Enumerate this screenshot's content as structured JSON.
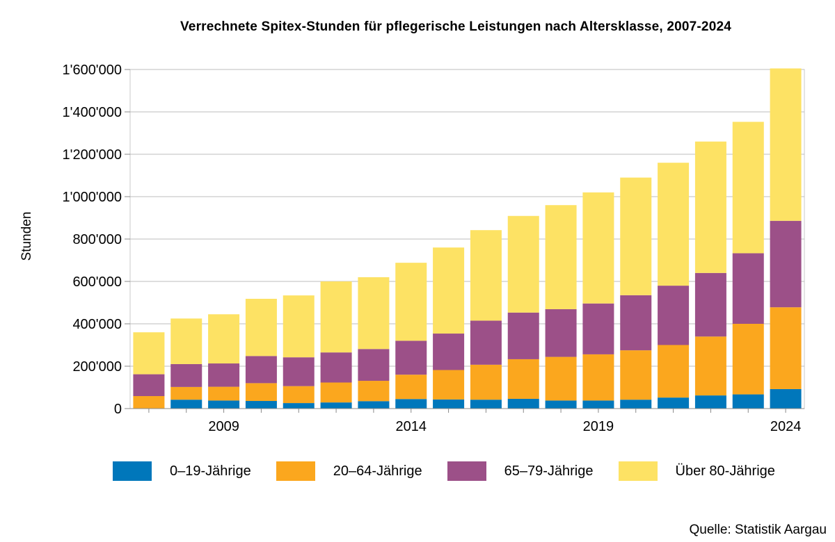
{
  "chart_data": {
    "type": "bar",
    "stacked": true,
    "title": "Verrechnete Spitex-Stunden für pflegerische Leistungen nach Altersklasse, 2007-2024",
    "ylabel": "Stunden",
    "xlabel": "",
    "ylim": [
      0,
      1600000
    ],
    "y_ticks": [
      0,
      200000,
      400000,
      600000,
      800000,
      1000000,
      1200000,
      1400000,
      1600000
    ],
    "y_tick_labels": [
      "0",
      "200'000",
      "400'000",
      "600'000",
      "800'000",
      "1'000'000",
      "1'200'000",
      "1'400'000",
      "1'600'000"
    ],
    "x_tick_labels": [
      "2009",
      "2014",
      "2019",
      "2024"
    ],
    "categories": [
      "2007",
      "2008",
      "2009",
      "2010",
      "2011",
      "2012",
      "2013",
      "2014",
      "2015",
      "2016",
      "2017",
      "2018",
      "2019",
      "2020",
      "2021",
      "2022",
      "2023",
      "2024"
    ],
    "series": [
      {
        "name": "0–19-Jährige",
        "color": "#0077bb",
        "values": [
          0,
          42000,
          38000,
          36000,
          26000,
          29000,
          35000,
          45000,
          43000,
          42000,
          46000,
          38000,
          38000,
          42000,
          52000,
          62000,
          67000,
          92000
        ]
      },
      {
        "name": "20–64-Jährige",
        "color": "#fba71e",
        "values": [
          59000,
          60000,
          65000,
          84000,
          80000,
          94000,
          96000,
          115000,
          139000,
          165000,
          187000,
          206000,
          218000,
          233000,
          248000,
          278000,
          333000,
          386000
        ]
      },
      {
        "name": "65–79-Jährige",
        "color": "#9c5088",
        "values": [
          103000,
          108000,
          110000,
          128000,
          136000,
          142000,
          150000,
          160000,
          172000,
          208000,
          220000,
          225000,
          240000,
          260000,
          280000,
          300000,
          333000,
          408000
        ]
      },
      {
        "name": "Über 80-Jährige",
        "color": "#fde264",
        "values": [
          198000,
          215000,
          232000,
          270000,
          292000,
          335000,
          339000,
          368000,
          406000,
          427000,
          456000,
          491000,
          524000,
          555000,
          580000,
          620000,
          620000,
          719000
        ]
      }
    ],
    "grid": true,
    "legend": "bottom"
  },
  "source": "Quelle: Statistik Aargau"
}
